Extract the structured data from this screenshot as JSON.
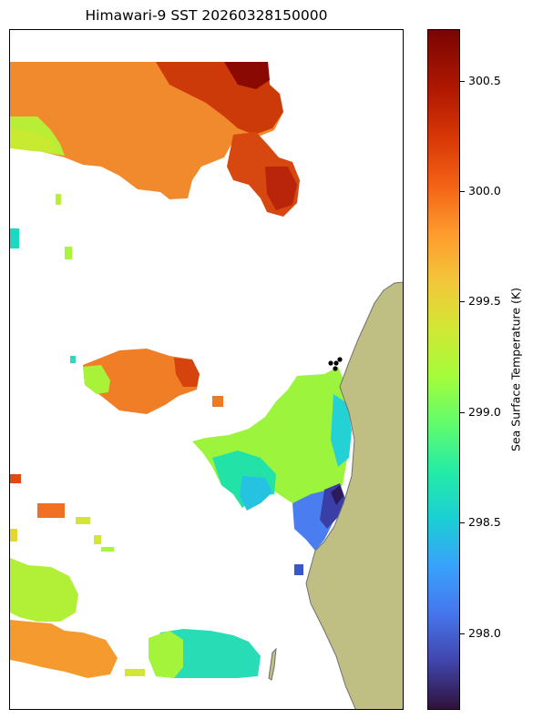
{
  "title": "Himawari-9 SST 20260328150000",
  "colorbar": {
    "label": "Sea Surface Temperature (K)",
    "colormap": "turbo",
    "min": 297.65,
    "max": 300.73,
    "ticks": [
      "298.0",
      "298.5",
      "299.0",
      "299.5",
      "300.0",
      "300.5"
    ]
  },
  "map": {
    "land_color": "#bfbf84",
    "coast_color": "#6f6f6f",
    "missing_color": "#ffffff",
    "markers_color": "#000000"
  }
}
